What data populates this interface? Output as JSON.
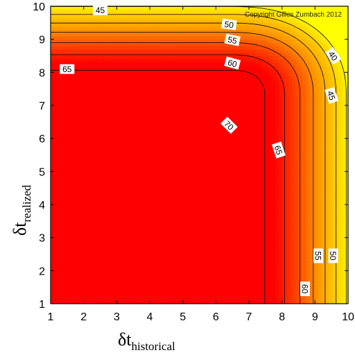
{
  "chart_data": {
    "type": "heatmap",
    "title": "",
    "copyright": "Copyright Gilles Zumbach 2012",
    "xlabel": {
      "symbol": "δt",
      "subscript": "historical"
    },
    "ylabel": {
      "symbol": "δt",
      "subscript": "realized"
    },
    "xlim": [
      1,
      10
    ],
    "ylim": [
      1,
      10
    ],
    "x_ticks": [
      "1",
      "2",
      "3",
      "4",
      "5",
      "6",
      "7",
      "8",
      "9",
      "10"
    ],
    "y_ticks": [
      "1",
      "2",
      "3",
      "4",
      "5",
      "6",
      "7",
      "8",
      "9",
      "10"
    ],
    "colormap": {
      "low": "#ffff00",
      "mid": "#ff9900",
      "high": "#ff0000"
    },
    "contour_levels": [
      40,
      45,
      50,
      55,
      60,
      65,
      70
    ],
    "contour_labels": [
      {
        "text": "45",
        "x": 2.5,
        "y": 9.88,
        "rotate": 0
      },
      {
        "text": "50",
        "x": 6.4,
        "y": 9.45,
        "rotate": 8
      },
      {
        "text": "55",
        "x": 6.5,
        "y": 8.98,
        "rotate": 12
      },
      {
        "text": "60",
        "x": 6.5,
        "y": 8.28,
        "rotate": 15
      },
      {
        "text": "65",
        "x": 1.5,
        "y": 8.1,
        "rotate": 0
      },
      {
        "text": "70",
        "x": 6.4,
        "y": 6.4,
        "rotate": 45
      },
      {
        "text": "65",
        "x": 7.9,
        "y": 5.65,
        "rotate": 72
      },
      {
        "text": "40",
        "x": 9.55,
        "y": 8.5,
        "rotate": 55
      },
      {
        "text": "45",
        "x": 9.5,
        "y": 7.3,
        "rotate": 72
      },
      {
        "text": "60",
        "x": 8.7,
        "y": 1.45,
        "rotate": 90
      },
      {
        "text": "55",
        "x": 9.1,
        "y": 2.45,
        "rotate": 90
      },
      {
        "text": "50",
        "x": 9.55,
        "y": 2.45,
        "rotate": 90
      }
    ]
  }
}
